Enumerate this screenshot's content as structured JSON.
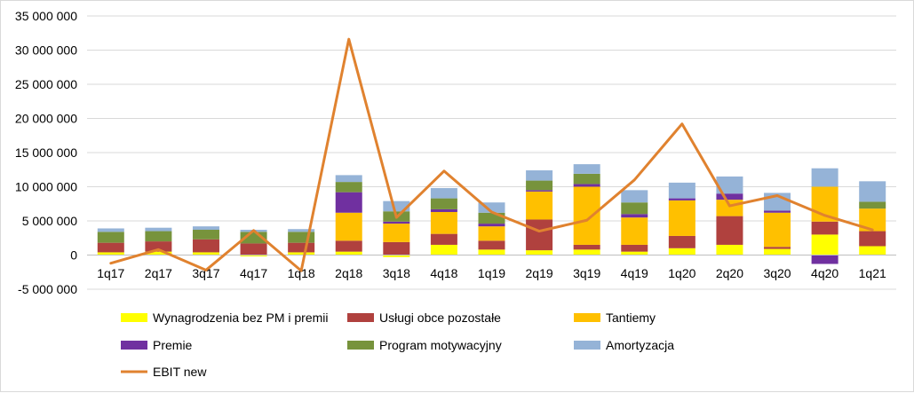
{
  "chart_data": {
    "type": "bar",
    "stacked": true,
    "categories": [
      "1q17",
      "2q17",
      "3q17",
      "4q17",
      "1q18",
      "2q18",
      "3q18",
      "4q18",
      "1q19",
      "2q19",
      "3q19",
      "4q19",
      "1q20",
      "2q20",
      "3q20",
      "4q20",
      "1q21"
    ],
    "ylim": [
      -5000000,
      35000000
    ],
    "yticks": [
      -5000000,
      0,
      5000000,
      10000000,
      15000000,
      20000000,
      25000000,
      30000000,
      35000000
    ],
    "ytick_labels": [
      "-5 000 000",
      "0",
      "5 000 000",
      "10 000 000",
      "15 000 000",
      "20 000 000",
      "25 000 000",
      "30 000 000",
      "35 000 000"
    ],
    "grid": true,
    "legend_position": "bottom",
    "series": [
      {
        "name": "Wynagrodzenia bez PM i premii",
        "color": "#ffff00",
        "values": [
          400000,
          500000,
          400000,
          -200000,
          400000,
          500000,
          -300000,
          1500000,
          800000,
          700000,
          800000,
          500000,
          1000000,
          1500000,
          900000,
          3000000,
          1300000
        ]
      },
      {
        "name": "Usługi obce pozostałe",
        "color": "#b0413e",
        "values": [
          1400000,
          1500000,
          1900000,
          1700000,
          1400000,
          1600000,
          1900000,
          1600000,
          1300000,
          4500000,
          700000,
          1000000,
          1800000,
          4200000,
          300000,
          1900000,
          2200000
        ]
      },
      {
        "name": "Tantiemy",
        "color": "#ffc000",
        "values": [
          0,
          0,
          0,
          0,
          0,
          4100000,
          2700000,
          3200000,
          2100000,
          4100000,
          8500000,
          4000000,
          5200000,
          2400000,
          5000000,
          5100000,
          3300000
        ]
      },
      {
        "name": "Premie",
        "color": "#7030a0",
        "values": [
          0,
          0,
          0,
          0,
          0,
          3000000,
          300000,
          400000,
          400000,
          200000,
          400000,
          500000,
          300000,
          900000,
          300000,
          -1300000,
          0
        ]
      },
      {
        "name": "Program motywacyjny",
        "color": "#77933c",
        "values": [
          1600000,
          1500000,
          1400000,
          1700000,
          1600000,
          1500000,
          1500000,
          1600000,
          1600000,
          1400000,
          1500000,
          1700000,
          0,
          0,
          0,
          0,
          1000000
        ]
      },
      {
        "name": "Amortyzacja",
        "color": "#95b3d7",
        "values": [
          500000,
          500000,
          500000,
          300000,
          400000,
          1000000,
          1500000,
          1500000,
          1500000,
          1500000,
          1400000,
          1800000,
          2300000,
          2500000,
          2600000,
          2700000,
          3000000
        ]
      }
    ],
    "line_series": {
      "name": "EBIT new",
      "color": "#e0822f",
      "values": [
        -1200000,
        800000,
        -2200000,
        3600000,
        -2300000,
        31600000,
        5500000,
        12300000,
        6300000,
        3500000,
        5100000,
        11000000,
        19200000,
        7200000,
        8700000,
        5800000,
        3700000
      ]
    }
  }
}
